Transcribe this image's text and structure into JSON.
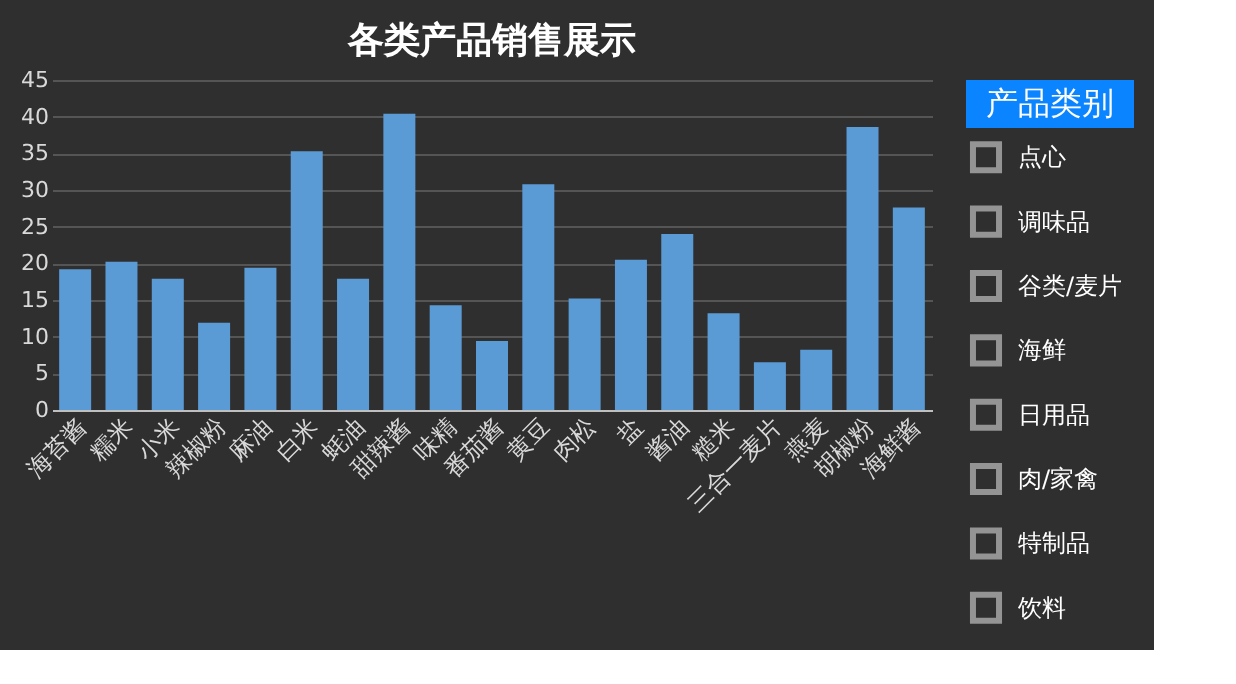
{
  "chart_data": [
    {
      "type": "bar",
      "title": "各类产品销售展示",
      "categories": [
        "海苔酱",
        "糯米",
        "小米",
        "辣椒粉",
        "麻油",
        "白米",
        "蚝油",
        "甜辣酱",
        "味精",
        "番茄酱",
        "黄豆",
        "肉松",
        "盐",
        "酱油",
        "糙米",
        "三合一麦片",
        "燕麦",
        "胡椒粉",
        "海鲜酱"
      ],
      "values": [
        19.2,
        20.2,
        17.9,
        11.9,
        19.4,
        35.3,
        17.9,
        40.4,
        14.3,
        9.4,
        30.8,
        15.2,
        20.5,
        24.0,
        13.2,
        6.5,
        8.2,
        38.6,
        27.6
      ],
      "color": "#5b9bd5",
      "ylim": [
        0,
        45
      ],
      "yticks": [
        0,
        5,
        10,
        15,
        20,
        25,
        30,
        35,
        40,
        45
      ],
      "grid": "y"
    },
    {
      "type": "other",
      "title": "产品类别",
      "annotations": [
        "点心",
        "调味品",
        "谷类/麦片",
        "海鲜",
        "日用品",
        "肉/家禽",
        "特制品",
        "饮料"
      ]
    }
  ]
}
